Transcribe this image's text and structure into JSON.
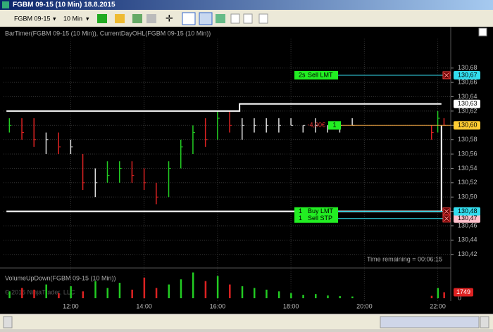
{
  "window": {
    "title": "FGBM 09-15 (10 Min)  18.8.2015"
  },
  "toolbar": {
    "instrument": "FGBM 09-15",
    "interval": "10 Min"
  },
  "chart_data": {
    "type": "ohlc",
    "indicator_label": "BarTimer(FGBM 09-15 (10 Min)), CurrentDayOHL(FGBM 09-15 (10 Min))",
    "timer_text": "Time remaining = 00:06:15",
    "volume_label": "VolumeUpDown(FGBM 09-15 (10 Min))",
    "watermark": "© 2015 NinjaTrader, LLC",
    "x": [
      10.33,
      10.67,
      11,
      11.33,
      11.67,
      12,
      12.33,
      12.67,
      13,
      13.33,
      13.67,
      14,
      14.33,
      14.67,
      15,
      15.33,
      15.67,
      16,
      16.33,
      16.67,
      17,
      17.33,
      17.67,
      18,
      18.33,
      18.67,
      19,
      19.33,
      19.67,
      21.83,
      22,
      22.17
    ],
    "high": [
      130.61,
      130.61,
      130.61,
      130.59,
      130.59,
      130.58,
      130.56,
      130.54,
      130.55,
      130.55,
      130.55,
      130.54,
      130.52,
      130.55,
      130.58,
      130.6,
      130.61,
      130.62,
      130.62,
      130.61,
      130.61,
      130.61,
      130.61,
      130.61,
      130.6,
      130.61,
      130.6,
      130.6,
      130.61,
      130.6,
      130.62,
      130.61
    ],
    "low": [
      130.59,
      130.58,
      130.57,
      130.56,
      130.56,
      130.56,
      130.51,
      130.5,
      130.52,
      130.52,
      130.52,
      130.51,
      130.49,
      130.5,
      130.54,
      130.56,
      130.57,
      130.58,
      130.59,
      130.58,
      130.59,
      130.59,
      130.59,
      130.6,
      130.59,
      130.59,
      130.59,
      130.59,
      130.6,
      130.58,
      130.59,
      130.6
    ],
    "close": [
      130.6,
      130.59,
      130.58,
      130.58,
      130.57,
      130.57,
      130.52,
      130.52,
      130.53,
      130.54,
      130.53,
      130.52,
      130.5,
      130.54,
      130.57,
      130.59,
      130.58,
      130.61,
      130.6,
      130.6,
      130.6,
      130.6,
      130.6,
      130.6,
      130.6,
      130.6,
      130.6,
      130.6,
      130.6,
      130.59,
      130.61,
      130.6
    ],
    "volume": [
      2000,
      3000,
      2500,
      4000,
      1500,
      3500,
      2000,
      5000,
      3000,
      4500,
      2500,
      6000,
      3000,
      4000,
      5500,
      7500,
      5000,
      6500,
      4000,
      3500,
      3000,
      2500,
      2000,
      1500,
      1000,
      1200,
      800,
      600,
      500,
      700,
      3000,
      1749
    ],
    "volume_value_label": "1749",
    "xlim": [
      10.17,
      22.2
    ],
    "xticks": [
      {
        "value": 12,
        "label": "12:00"
      },
      {
        "value": 14,
        "label": "14:00"
      },
      {
        "value": 16,
        "label": "16:00"
      },
      {
        "value": 18,
        "label": "18:00"
      },
      {
        "value": 20,
        "label": "20:00"
      },
      {
        "value": 22,
        "label": "22:00"
      }
    ],
    "ylim": [
      130.404,
      130.721
    ],
    "yticks": [
      {
        "value": 130.42,
        "label": "130,42"
      },
      {
        "value": 130.44,
        "label": "130,44"
      },
      {
        "value": 130.46,
        "label": "130,46"
      },
      {
        "value": 130.48,
        "label": "130,48"
      },
      {
        "value": 130.5,
        "label": "130,50"
      },
      {
        "value": 130.52,
        "label": "130,52"
      },
      {
        "value": 130.54,
        "label": "130,54"
      },
      {
        "value": 130.56,
        "label": "130,56"
      },
      {
        "value": 130.58,
        "label": "130,58"
      },
      {
        "value": 130.6,
        "label": "130,60"
      },
      {
        "value": 130.62,
        "label": "130,62"
      },
      {
        "value": 130.64,
        "label": "130,64"
      },
      {
        "value": 130.66,
        "label": "130,66"
      },
      {
        "value": 130.68,
        "label": "130,68"
      }
    ],
    "y2lim": [
      0,
      8000
    ],
    "y2ticks": [
      0
    ],
    "grid": true,
    "current_high": {
      "x": [
        10.25,
        16.6,
        16.6,
        22.1
      ],
      "values": [
        130.62,
        130.62,
        130.63,
        130.63
      ]
    },
    "current_low": {
      "x": [
        10.25,
        22.1,
        22.1
      ],
      "values": [
        130.48,
        130.48,
        130.6
      ]
    },
    "price_flags": [
      {
        "value": 130.63,
        "label": "130,63",
        "color": "#ffffff"
      },
      {
        "value": 130.6,
        "label": "130,60",
        "color": "#ffcc33"
      }
    ],
    "orders": [
      {
        "qty": "2s",
        "type": "Sell LMT",
        "value": 130.67,
        "label": "130,67",
        "color": "#33ddee"
      },
      {
        "qty": "1",
        "type": "Sell STP",
        "value": 130.47,
        "label": "130,47",
        "color": "#ffc0cb"
      },
      {
        "qty": "1",
        "type": "Buy LMT",
        "value": 130.48,
        "label": "130,48",
        "color": "#33ddee"
      }
    ],
    "position": {
      "qty": "1",
      "pnl": "-4,00€",
      "value": 130.6
    }
  }
}
